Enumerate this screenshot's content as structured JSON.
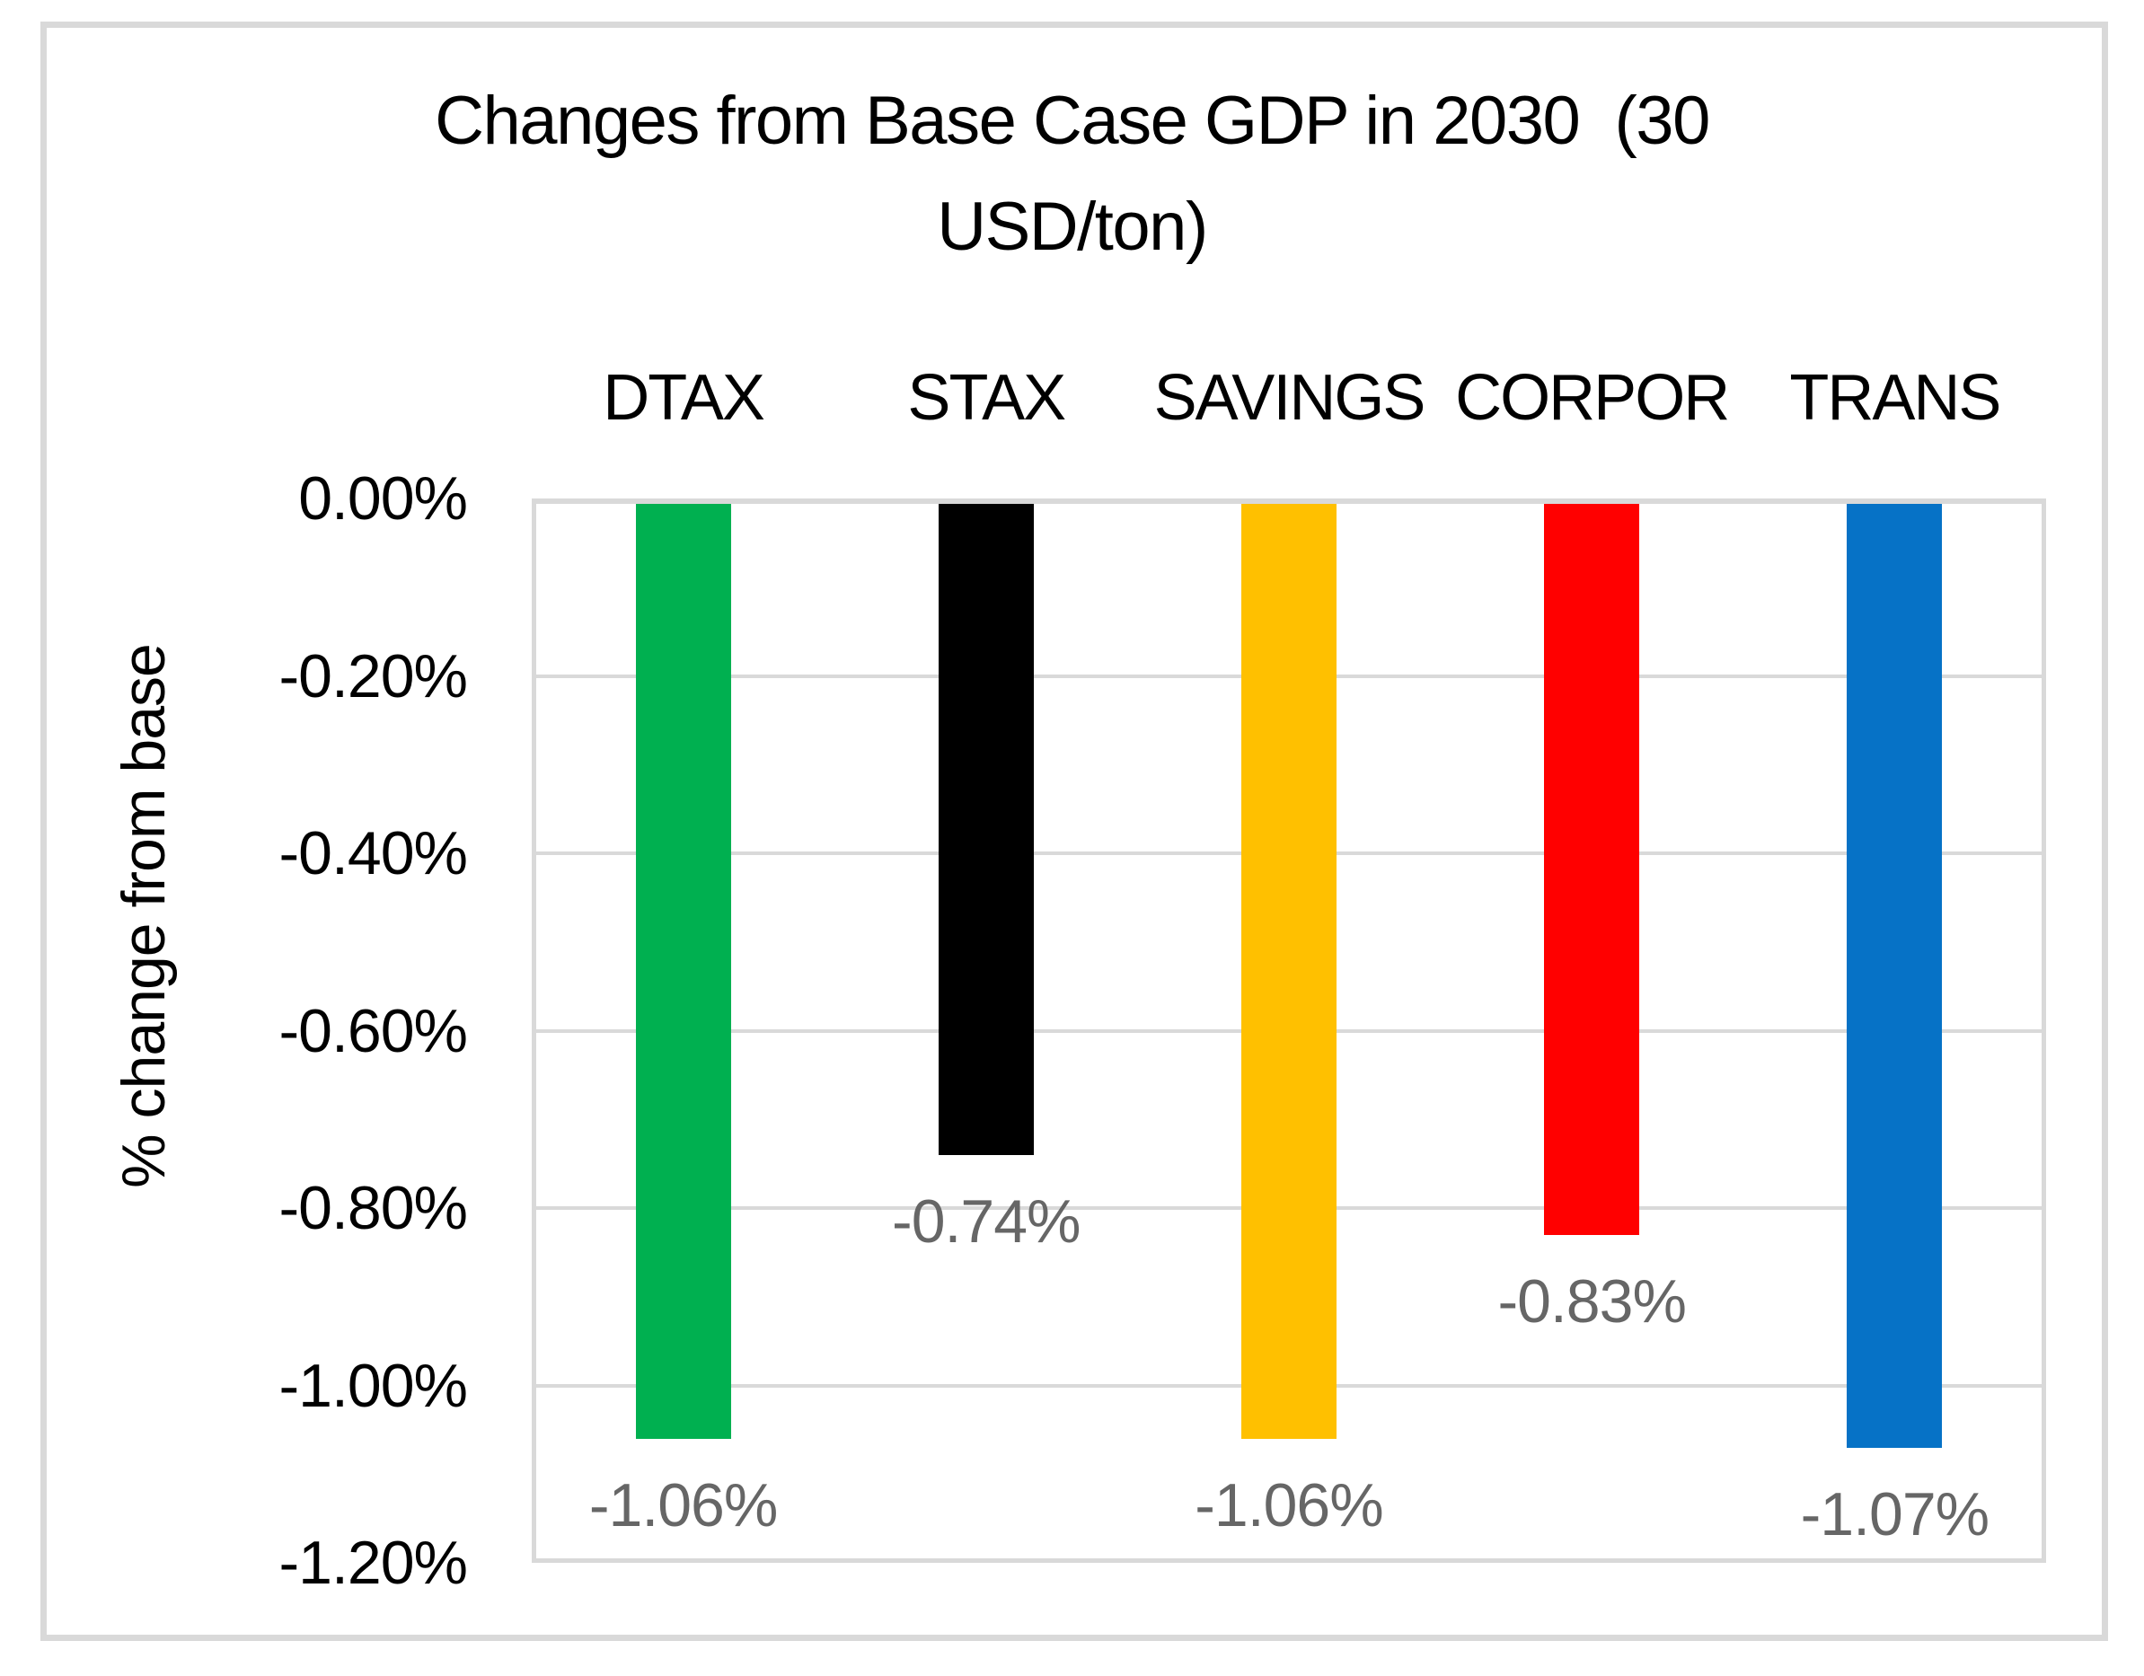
{
  "title_display": "Changes from Base Case GDP in 2030  (30\nUSD/ton)",
  "chart_data": {
    "type": "bar",
    "title": "Changes from Base Case GDP in 2030 (30 USD/ton)",
    "categories": [
      "DTAX",
      "STAX",
      "SAVINGS",
      "CORPOR",
      "TRANS"
    ],
    "values_pct": [
      -1.06,
      -0.74,
      -1.06,
      -0.83,
      -1.07
    ],
    "value_labels": [
      "-1.06%",
      "-0.74%",
      "-1.06%",
      "-0.83%",
      "-1.07%"
    ],
    "bar_colors": [
      "#00B050",
      "#000000",
      "#FFC000",
      "#FF0000",
      "#0672C6"
    ],
    "xlabel": "",
    "ylabel": "% change from base",
    "ylim_pct": [
      -1.2,
      0
    ],
    "ytick_labels": [
      "0.00%",
      "-0.20%",
      "-0.40%",
      "-0.60%",
      "-0.80%",
      "-1.00%",
      "-1.20%"
    ],
    "ytick_values_pct": [
      0,
      -0.2,
      -0.4,
      -0.6,
      -0.8,
      -1.0,
      -1.2
    ],
    "grid": true,
    "legend_position": "none",
    "category_label_position": "top",
    "data_label_position": "outside-end",
    "gridline_color": "#D9D9D9",
    "chart_border_color": "#D9D9D9",
    "data_label_color": "#666666",
    "axis_text_color": "#000000",
    "background_color": "#FFFFFF"
  }
}
